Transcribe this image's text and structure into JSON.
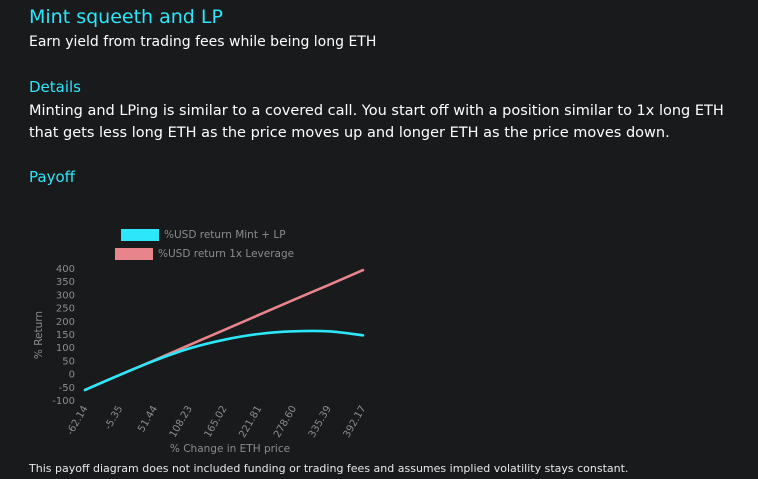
{
  "header": {
    "title": "Mint squeeth and LP",
    "subtitle": "Earn yield from trading fees while being long ETH"
  },
  "details": {
    "heading": "Details",
    "body": "Minting and LPing is similar to a covered call. You start off with a position similar to 1x long ETH that gets less long ETH as the price moves up and longer ETH as the price moves down."
  },
  "payoff": {
    "heading": "Payoff"
  },
  "footnote": "This payoff diagram does not included funding or trading fees and assumes implied volatility stays constant.",
  "chart_data": {
    "type": "line",
    "xlabel": "% Change in ETH price",
    "ylabel": "% Return",
    "xlim": [
      -62.14,
      392.17
    ],
    "ylim": [
      -100,
      400
    ],
    "x_ticks": [
      "-62.14",
      "-5.35",
      "51.44",
      "108.23",
      "165.02",
      "221.81",
      "278.60",
      "335.39",
      "392.17"
    ],
    "y_ticks": [
      "400",
      "350",
      "300",
      "250",
      "200",
      "150",
      "100",
      "50",
      "0",
      "-50",
      "-100"
    ],
    "legend_position": "top-left",
    "grid": false,
    "x": [
      -62.14,
      -5.35,
      51.44,
      108.23,
      165.02,
      221.81,
      278.6,
      335.39,
      392.17
    ],
    "series": [
      {
        "name": "%USD return Mint + LP",
        "color": "#2ce6f9",
        "values": [
          -62,
          -5,
          49,
          95,
          128,
          150,
          160,
          160,
          145
        ]
      },
      {
        "name": "%USD return 1x Leverage",
        "color": "#e8848b",
        "values": [
          -62,
          -5,
          51,
          108,
          165,
          222,
          279,
          335,
          392
        ]
      }
    ]
  }
}
